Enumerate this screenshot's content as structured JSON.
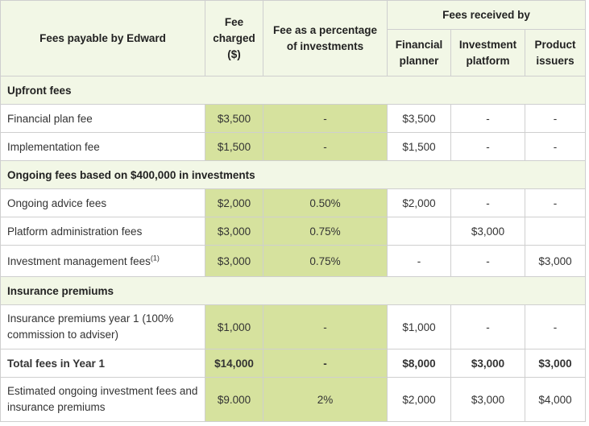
{
  "header": {
    "col1": "Fees payable by Edward",
    "col2": "Fee charged ($)",
    "col3": "Fee as a percentage of investments",
    "group": "Fees received by",
    "sub1": "Financial planner",
    "sub2": "Investment platform",
    "sub3": "Product issuers"
  },
  "sections": {
    "upfront": "Upfront fees",
    "ongoing": "Ongoing fees based on $400,000 in investments",
    "insurance": "Insurance premiums"
  },
  "rows": {
    "financial_plan": [
      "Financial plan fee",
      "$3,500",
      "-",
      "$3,500",
      "-",
      "-"
    ],
    "implementation": [
      "Implementation fee",
      "$1,500",
      "-",
      "$1,500",
      "-",
      "-"
    ],
    "ongoing_advice": [
      "Ongoing advice fees",
      "$2,000",
      "0.50%",
      "$2,000",
      "-",
      "-"
    ],
    "platform_admin": [
      "Platform administration fees",
      "$3,000",
      "0.75%",
      "",
      "$3,000",
      ""
    ],
    "investment_mgmt": [
      "Investment management fees",
      "$3,000",
      "0.75%",
      "-",
      "-",
      "$3,000"
    ],
    "investment_mgmt_note": "(1)",
    "insurance_premiums": [
      "Insurance premiums year 1 (100% commission to adviser)",
      "$1,000",
      "-",
      "$1,000",
      "-",
      "-"
    ],
    "total": [
      "Total fees in Year 1",
      "$14,000",
      "-",
      "$8,000",
      "$3,000",
      "$3,000"
    ],
    "estimated": [
      "Estimated ongoing investment fees and insurance premiums",
      "$9.000",
      "2%",
      "$2,000",
      "$3,000",
      "$4,000"
    ]
  },
  "colors": {
    "green": "#d6e29e",
    "header_bg": "#f2f7e6",
    "border": "#cfcfcf"
  }
}
